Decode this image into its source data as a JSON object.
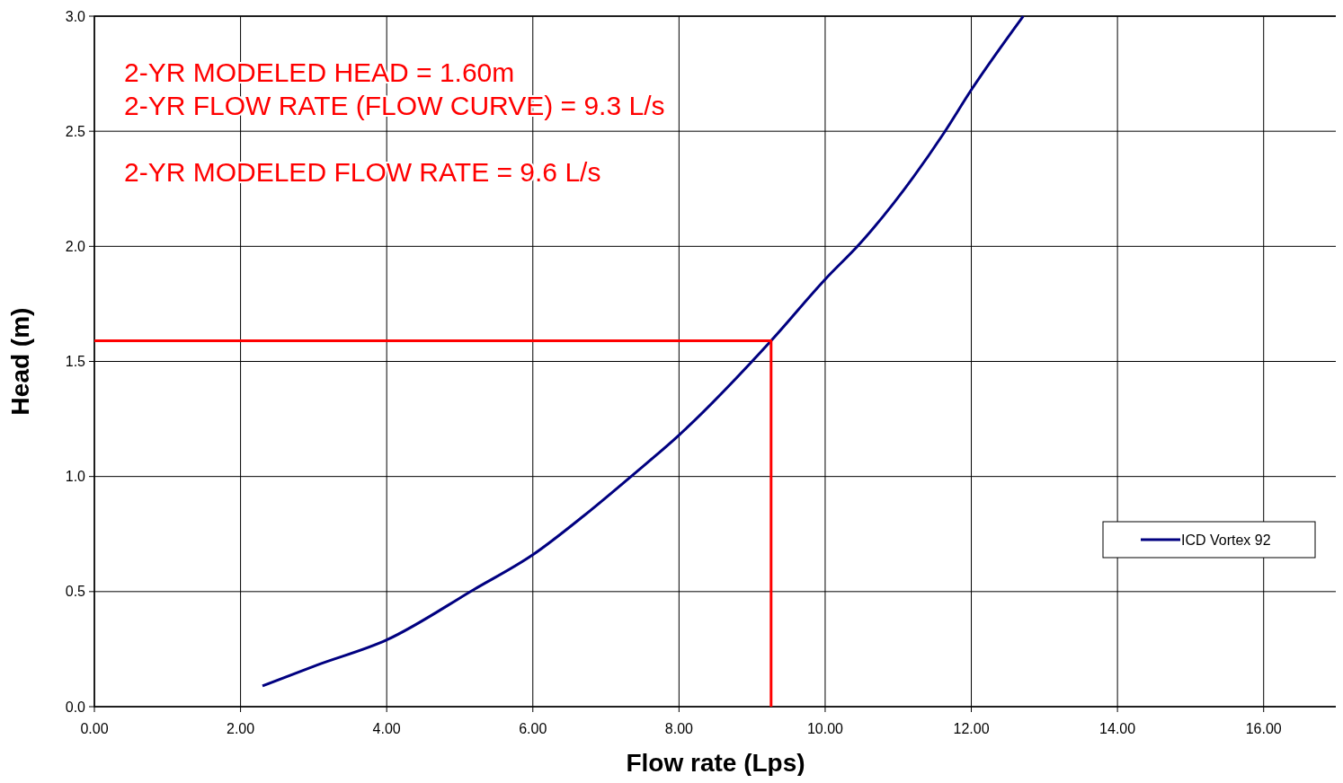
{
  "chart_data": {
    "type": "line",
    "xlabel": "Flow rate (Lps)",
    "ylabel": "Head (m)",
    "xlim": [
      0,
      17
    ],
    "ylim": [
      0,
      3
    ],
    "xticks": [
      {
        "value": 0,
        "label": "0.00"
      },
      {
        "value": 2,
        "label": "2.00"
      },
      {
        "value": 4,
        "label": "4.00"
      },
      {
        "value": 6,
        "label": "6.00"
      },
      {
        "value": 8,
        "label": "8.00"
      },
      {
        "value": 10,
        "label": "10.00"
      },
      {
        "value": 12,
        "label": "12.00"
      },
      {
        "value": 14,
        "label": "14.00"
      },
      {
        "value": 16,
        "label": "16.00"
      }
    ],
    "yticks": [
      {
        "value": 0,
        "label": "0.0"
      },
      {
        "value": 0.5,
        "label": "0.5"
      },
      {
        "value": 1,
        "label": "1.0"
      },
      {
        "value": 1.5,
        "label": "1.5"
      },
      {
        "value": 2,
        "label": "2.0"
      },
      {
        "value": 2.5,
        "label": "2.5"
      },
      {
        "value": 3,
        "label": "3.0"
      }
    ],
    "grid": true,
    "legend": "right",
    "line_style": "solid",
    "series": [
      {
        "name": "ICD Vortex 92",
        "color": "#000080",
        "x": [
          2.3,
          3.04,
          4.0,
          5.2,
          6.0,
          6.7,
          7.38,
          8.0,
          9.26,
          10.01,
          10.47,
          11.62,
          12.0,
          12.71
        ],
        "values": [
          0.09,
          0.18,
          0.29,
          0.51,
          0.66,
          0.83,
          1.01,
          1.18,
          1.59,
          1.86,
          2.01,
          2.49,
          2.68,
          3.0
        ]
      },
      {
        "color": "#ff0000",
        "x": [
          0,
          9.26,
          9.26
        ],
        "values": [
          1.59,
          1.59,
          0
        ]
      }
    ],
    "annotations": [
      "2-YR MODELED HEAD = 1.60m",
      "2-YR FLOW RATE (FLOW CURVE) = 9.3 L/s",
      "2-YR MODELED FLOW RATE = 9.6 L/s"
    ]
  }
}
